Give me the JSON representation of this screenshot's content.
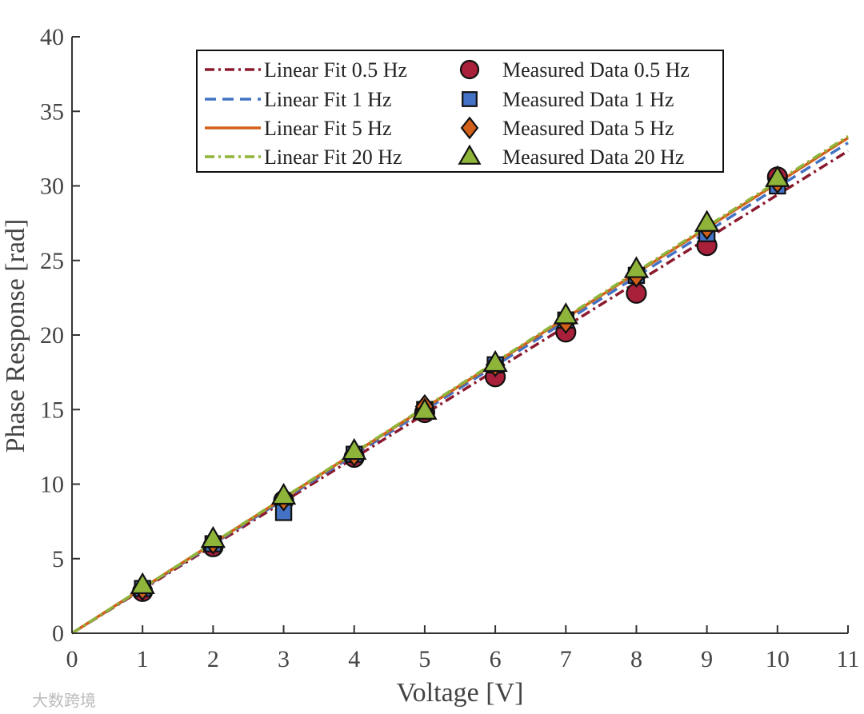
{
  "chart_data": {
    "type": "scatter",
    "title": "",
    "xlabel": "Voltage [V]",
    "ylabel": "Phase Response [rad]",
    "xlim": [
      0,
      11
    ],
    "ylim": [
      0,
      40
    ],
    "xticks": [
      0,
      1,
      2,
      3,
      4,
      5,
      6,
      7,
      8,
      9,
      10,
      11
    ],
    "yticks": [
      0,
      5,
      10,
      15,
      20,
      25,
      30,
      35,
      40
    ],
    "x": [
      1,
      2,
      3,
      4,
      5,
      6,
      7,
      8,
      9,
      10
    ],
    "fits": [
      {
        "name": "Linear Fit 0.5 Hz",
        "slope": 2.94,
        "color": "#8b1a2e",
        "dash": "dashdot"
      },
      {
        "name": "Linear Fit 1 Hz",
        "slope": 2.99,
        "color": "#4472c4",
        "dash": "dashed"
      },
      {
        "name": "Linear Fit 5 Hz",
        "slope": 3.02,
        "color": "#d2601a",
        "dash": "solid"
      },
      {
        "name": "Linear Fit 20 Hz",
        "slope": 3.03,
        "color": "#8fb43a",
        "dash": "dashdot"
      }
    ],
    "series": [
      {
        "name": "Measured Data 0.5 Hz",
        "marker": "circle",
        "color": "#a8203a",
        "values": [
          2.8,
          5.8,
          8.9,
          11.8,
          14.8,
          17.2,
          20.2,
          22.8,
          26.0,
          30.6
        ]
      },
      {
        "name": "Measured Data 1 Hz",
        "marker": "square",
        "color": "#4472c4",
        "values": [
          3.0,
          6.0,
          8.1,
          12.0,
          15.0,
          18.0,
          21.0,
          24.0,
          26.8,
          30.0
        ]
      },
      {
        "name": "Measured Data 5 Hz",
        "marker": "diamond",
        "color": "#d2601a",
        "values": [
          3.0,
          6.1,
          9.0,
          12.0,
          15.2,
          18.0,
          20.9,
          24.0,
          27.2,
          30.3
        ]
      },
      {
        "name": "Measured Data 20 Hz",
        "marker": "triangle",
        "color": "#8fb43a",
        "values": [
          3.2,
          6.3,
          9.2,
          12.2,
          14.9,
          18.1,
          21.3,
          24.4,
          27.5,
          30.5
        ]
      }
    ],
    "legend_position": "top"
  },
  "watermark": "大数跨境"
}
